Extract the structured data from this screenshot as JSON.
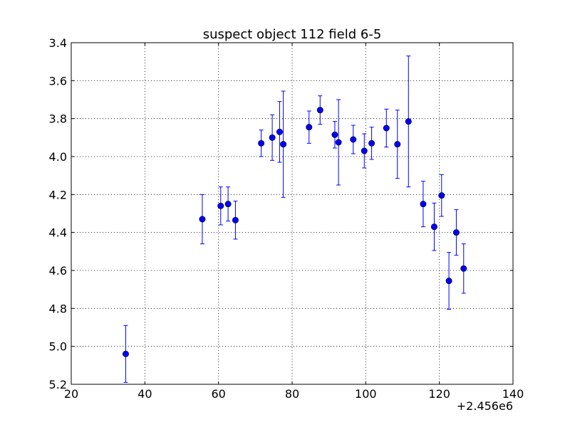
{
  "chart_data": {
    "type": "scatter",
    "title": "suspect object 112 field 6-5",
    "xlabel": "",
    "ylabel": "",
    "x_offset_label": "+2.456e6",
    "xlim": [
      20,
      140
    ],
    "ylim": [
      5.2,
      3.4
    ],
    "y_inverted": true,
    "x_ticks": [
      20,
      40,
      60,
      80,
      100,
      120,
      140
    ],
    "x_tick_labels": [
      "20",
      "40",
      "60",
      "80",
      "100",
      "120",
      "140"
    ],
    "y_ticks": [
      3.4,
      3.6,
      3.8,
      4.0,
      4.2,
      4.4,
      4.6,
      4.8,
      5.0,
      5.2
    ],
    "y_tick_labels": [
      "3.4",
      "3.6",
      "3.8",
      "4.0",
      "4.2",
      "4.4",
      "4.6",
      "4.8",
      "5.0",
      "5.2"
    ],
    "grid": true,
    "marker_color": "#0000ff",
    "series": [
      {
        "points": [
          {
            "x": 2456034.8,
            "y": 5.04,
            "err": 0.15
          },
          {
            "x": 2456055.6,
            "y": 4.33,
            "err": 0.13
          },
          {
            "x": 2456060.6,
            "y": 4.26,
            "err": 0.1
          },
          {
            "x": 2456062.6,
            "y": 4.25,
            "err": 0.09
          },
          {
            "x": 2456064.6,
            "y": 4.335,
            "err": 0.1
          },
          {
            "x": 2456071.6,
            "y": 3.93,
            "err": 0.07
          },
          {
            "x": 2456074.6,
            "y": 3.9,
            "err": 0.12
          },
          {
            "x": 2456076.6,
            "y": 3.87,
            "err": 0.16
          },
          {
            "x": 2456077.6,
            "y": 3.935,
            "err": 0.28
          },
          {
            "x": 2456084.6,
            "y": 3.845,
            "err": 0.085
          },
          {
            "x": 2456087.6,
            "y": 3.755,
            "err": 0.075
          },
          {
            "x": 2456091.6,
            "y": 3.885,
            "err": 0.07
          },
          {
            "x": 2456092.6,
            "y": 3.925,
            "err": 0.225
          },
          {
            "x": 2456096.6,
            "y": 3.91,
            "err": 0.075
          },
          {
            "x": 2456099.6,
            "y": 3.97,
            "err": 0.09
          },
          {
            "x": 2456101.6,
            "y": 3.93,
            "err": 0.085
          },
          {
            "x": 2456105.6,
            "y": 3.85,
            "err": 0.1
          },
          {
            "x": 2456108.6,
            "y": 3.935,
            "err": 0.18
          },
          {
            "x": 2456111.6,
            "y": 3.815,
            "err": 0.345
          },
          {
            "x": 2456115.6,
            "y": 4.25,
            "err": 0.12
          },
          {
            "x": 2456118.6,
            "y": 4.37,
            "err": 0.125
          },
          {
            "x": 2456120.6,
            "y": 4.205,
            "err": 0.11
          },
          {
            "x": 2456122.6,
            "y": 4.655,
            "err": 0.15
          },
          {
            "x": 2456124.6,
            "y": 4.4,
            "err": 0.12
          },
          {
            "x": 2456126.6,
            "y": 4.59,
            "err": 0.13
          }
        ]
      }
    ]
  }
}
